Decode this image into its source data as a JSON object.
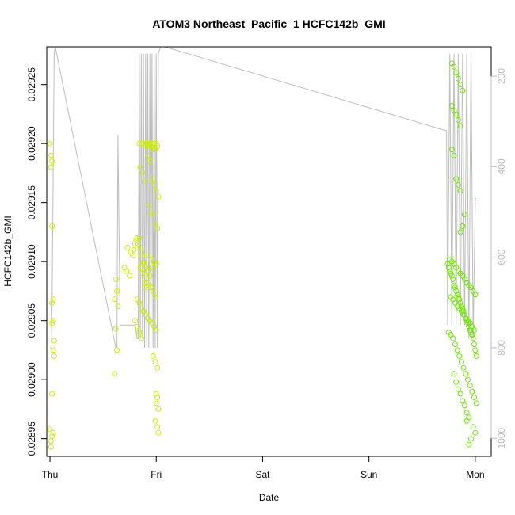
{
  "chart_data": {
    "type": "scatter",
    "title": "ATOM3 Northeast_Pacific_1 HCFC142b_GMI",
    "xlabel": "Date",
    "ylabel": "HCFC142b_GMI",
    "x_ticks": [
      "Thu",
      "Fri",
      "Sat",
      "Sun",
      "Mon"
    ],
    "xlim": [
      -0.03,
      4.15
    ],
    "ylim": [
      0.028935,
      0.029282
    ],
    "y_ticks": [
      0.02895,
      0.029,
      0.02905,
      0.0291,
      0.02915,
      0.0292,
      0.02925
    ],
    "y_tick_labels": [
      "0.02895",
      "0.02900",
      "0.02905",
      "0.02910",
      "0.02915",
      "0.02920",
      "0.02925"
    ],
    "right_axis": {
      "ticks": [
        200,
        400,
        600,
        800,
        1000
      ],
      "lim": [
        1040,
        135
      ],
      "color": "#bdbdbd"
    },
    "colors": {
      "left_points": "#ccf000",
      "right_points": "#6ee800",
      "altitude_line": "#bdbdbd"
    },
    "grid": false,
    "series": [
      {
        "x": [
          0.0,
          0.01,
          0.02,
          0.01,
          0.02,
          0.03,
          0.02,
          0.03,
          0.04,
          0.03,
          0.04,
          0.02,
          0.03,
          0.02,
          0.01,
          0.01,
          0.0,
          0.02
        ],
        "y": [
          0.0292,
          0.02919,
          0.029185,
          0.02918,
          0.02913,
          0.029068,
          0.029065,
          0.02905,
          0.029033,
          0.029025,
          0.02902,
          0.028988,
          0.028955,
          0.028952,
          0.028948,
          0.028943,
          0.028958,
          0.029048
        ]
      },
      {
        "x": [
          0.62,
          0.63,
          0.61,
          0.64,
          0.62,
          0.63,
          0.61,
          0.7,
          0.72,
          0.75,
          0.73,
          0.76,
          0.78,
          0.8,
          0.79,
          0.81,
          0.82,
          0.84,
          0.83,
          0.85,
          0.86,
          0.87,
          0.88,
          0.84,
          0.86,
          0.88,
          0.9,
          0.91,
          0.92,
          0.93,
          0.94,
          0.95,
          0.96,
          0.97,
          0.98,
          0.99,
          1.0,
          1.01,
          0.92,
          0.94,
          0.96,
          0.98,
          1.0,
          1.02,
          0.93,
          0.95,
          0.97,
          0.99,
          1.01,
          0.85,
          0.87,
          0.89,
          0.91,
          0.93,
          0.95,
          0.97,
          0.99,
          0.82,
          0.84,
          0.86,
          0.88,
          0.9,
          0.92,
          0.94,
          0.96,
          0.98,
          1.0,
          0.97,
          0.99,
          1.01,
          1.0,
          1.02,
          0.99,
          1.01,
          1.02,
          1.0,
          1.01,
          0.85,
          0.87,
          0.89,
          0.93,
          0.95,
          0.88,
          0.9,
          0.92,
          0.8,
          0.82,
          0.84,
          0.86,
          0.98,
          1.0,
          0.96,
          0.94,
          0.91,
          0.89
        ],
        "y": [
          0.029085,
          0.029075,
          0.029068,
          0.029062,
          0.029043,
          0.029025,
          0.029005,
          0.029095,
          0.029092,
          0.029088,
          0.029112,
          0.029108,
          0.029105,
          0.029115,
          0.02911,
          0.029118,
          0.02912,
          0.02912,
          0.029115,
          0.029112,
          0.029108,
          0.029105,
          0.0291,
          0.0292,
          0.0292,
          0.0292,
          0.029198,
          0.0292,
          0.0292,
          0.029198,
          0.0292,
          0.029198,
          0.0292,
          0.029195,
          0.0292,
          0.029195,
          0.0292,
          0.029198,
          0.02919,
          0.029185,
          0.02917,
          0.029165,
          0.02916,
          0.029155,
          0.029148,
          0.029142,
          0.02914,
          0.029132,
          0.029128,
          0.029095,
          0.02909,
          0.029085,
          0.029082,
          0.02908,
          0.029078,
          0.029075,
          0.02907,
          0.029068,
          0.029065,
          0.02906,
          0.029058,
          0.029055,
          0.029052,
          0.02905,
          0.029048,
          0.029045,
          0.029042,
          0.02902,
          0.029015,
          0.02901,
          0.02898,
          0.028975,
          0.028965,
          0.02896,
          0.028955,
          0.028988,
          0.028985,
          0.02918,
          0.029175,
          0.029168,
          0.029105,
          0.029102,
          0.029098,
          0.029095,
          0.029092,
          0.02905,
          0.029045,
          0.02904,
          0.029035,
          0.0291,
          0.029098,
          0.029095,
          0.029088,
          0.029082,
          0.029078
        ]
      },
      {
        "x": [
          3.74,
          3.75,
          3.76,
          3.77,
          3.78,
          3.79,
          3.8,
          3.81,
          3.82,
          3.83,
          3.84,
          3.85,
          3.86,
          3.87,
          3.88,
          3.89,
          3.9,
          3.91,
          3.92,
          3.93,
          3.94,
          3.95,
          3.96,
          3.97,
          3.98,
          3.99,
          4.0,
          4.01,
          3.76,
          3.78,
          3.8,
          3.82,
          3.84,
          3.86,
          3.88,
          3.9,
          3.92,
          3.94,
          3.96,
          3.98,
          4.0,
          3.77,
          3.79,
          3.81,
          3.83,
          3.85,
          3.87,
          3.89,
          3.91,
          3.93,
          3.95,
          3.97,
          3.99,
          3.75,
          3.77,
          3.79,
          3.81,
          3.83,
          3.85,
          3.87,
          3.89,
          3.91,
          3.93,
          3.95,
          3.97,
          3.99,
          4.01,
          3.8,
          3.82,
          3.84,
          3.86,
          3.88,
          3.9,
          3.92,
          3.94,
          3.78,
          3.8,
          3.82,
          3.84,
          3.86,
          3.88,
          3.78,
          3.8,
          3.82,
          3.84,
          3.86,
          3.78,
          3.8,
          3.82,
          3.84,
          3.86,
          3.98,
          4.0,
          3.96,
          3.94,
          3.92,
          3.9,
          3.88,
          3.86
        ],
        "y": [
          0.029098,
          0.029095,
          0.029092,
          0.02909,
          0.029088,
          0.029085,
          0.02908,
          0.029078,
          0.029075,
          0.029072,
          0.02907,
          0.029068,
          0.029065,
          0.029062,
          0.02906,
          0.029058,
          0.029055,
          0.029052,
          0.02905,
          0.029048,
          0.029045,
          0.029042,
          0.02904,
          0.029038,
          0.029035,
          0.02903,
          0.029025,
          0.02902,
          0.029102,
          0.0291,
          0.029098,
          0.029095,
          0.029092,
          0.02909,
          0.029088,
          0.029085,
          0.029082,
          0.02908,
          0.029078,
          0.029075,
          0.029072,
          0.02907,
          0.029068,
          0.029065,
          0.029062,
          0.02906,
          0.029058,
          0.029055,
          0.029052,
          0.02905,
          0.029048,
          0.029045,
          0.029042,
          0.02904,
          0.029038,
          0.029035,
          0.02903,
          0.029025,
          0.02902,
          0.029015,
          0.02901,
          0.029005,
          0.029,
          0.028995,
          0.02899,
          0.028985,
          0.02898,
          0.029005,
          0.028998,
          0.028992,
          0.028988,
          0.028982,
          0.028978,
          0.028972,
          0.028968,
          0.029268,
          0.029265,
          0.02926,
          0.029255,
          0.02925,
          0.029245,
          0.029232,
          0.029228,
          0.029225,
          0.02922,
          0.029215,
          0.029195,
          0.02919,
          0.02917,
          0.029165,
          0.02916,
          0.02896,
          0.028955,
          0.02895,
          0.028945,
          0.028965,
          0.02914,
          0.02913,
          0.029125
        ]
      }
    ],
    "altitude_line": {
      "x": [
        0.0,
        0.01,
        0.02,
        0.03,
        0.04,
        0.05,
        0.62,
        0.63,
        0.64,
        0.66,
        0.7,
        0.75,
        0.8,
        0.82,
        0.83,
        0.84,
        0.85,
        0.86,
        0.87,
        0.88,
        0.89,
        0.9,
        0.91,
        0.92,
        0.93,
        0.94,
        0.95,
        0.96,
        0.97,
        0.98,
        0.99,
        1.0,
        1.01,
        1.02,
        1.04,
        1.06,
        1.08,
        3.72,
        3.73,
        3.74,
        3.76,
        3.78,
        3.8,
        3.82,
        3.84,
        3.86,
        3.88,
        3.9,
        3.92,
        3.94,
        3.96,
        3.98,
        4.0,
        4.01
      ],
      "y": [
        800,
        800,
        700,
        420,
        150,
        135,
        800,
        800,
        330,
        750,
        750,
        750,
        750,
        780,
        780,
        150,
        780,
        150,
        780,
        150,
        800,
        150,
        800,
        150,
        800,
        150,
        800,
        150,
        800,
        150,
        800,
        150,
        800,
        150,
        135,
        135,
        135,
        320,
        320,
        750,
        150,
        750,
        150,
        750,
        150,
        750,
        150,
        750,
        150,
        780,
        150,
        780,
        470,
        470
      ]
    }
  }
}
